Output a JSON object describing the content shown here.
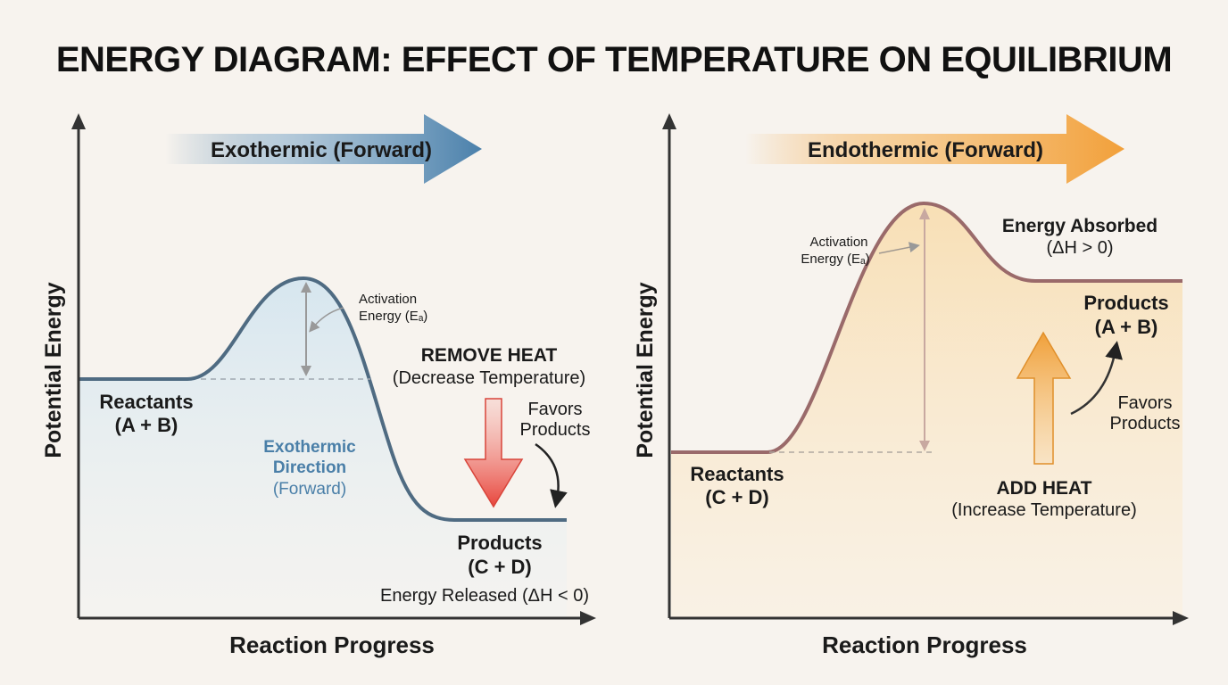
{
  "title": "ENERGY DIAGRAM: EFFECT OF TEMPERATURE ON EQUILIBRIUM",
  "colors": {
    "exothermic": "#4a7fa8",
    "endothermic": "#f0a23c",
    "remove_heat": "#e8453c",
    "curve_left": "#4f6b82",
    "curve_right": "#9a6a6a"
  },
  "left": {
    "banner": "Exothermic (Forward)",
    "ylabel": "Potential Energy",
    "xlabel": "Reaction Progress",
    "reactants": [
      "Reactants",
      "(A + B)"
    ],
    "activation": [
      "Activation",
      "Energy (Eₐ)"
    ],
    "direction": [
      "Exothermic",
      "Direction",
      "(Forward)"
    ],
    "heat": [
      "REMOVE HEAT",
      "(Decrease Temperature)"
    ],
    "favors": [
      "Favors",
      "Products"
    ],
    "products": [
      "Products",
      "(C + D)"
    ],
    "energy": "Energy Released (ΔH < 0)"
  },
  "right": {
    "banner": "Endothermic (Forward)",
    "ylabel": "Potential Energy",
    "xlabel": "Reaction Progress",
    "reactants": [
      "Reactants",
      "(C + D)"
    ],
    "activation": [
      "Activation",
      "Energy (Eₐ)"
    ],
    "energy": [
      "Energy Absorbed",
      "(ΔH > 0)"
    ],
    "products": [
      "Products",
      "(A + B)"
    ],
    "favors": [
      "Favors",
      "Products"
    ],
    "heat": [
      "ADD HEAT",
      "(Increase Temperature)"
    ]
  }
}
